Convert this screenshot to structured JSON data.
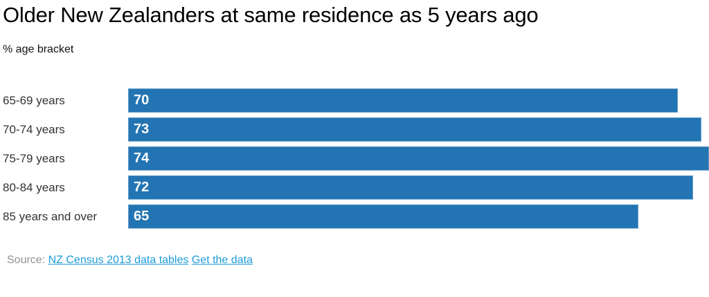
{
  "chart_data": {
    "type": "bar",
    "orientation": "horizontal",
    "title": "Older New Zealanders at same residence as 5 years ago",
    "subtitle": "% age bracket",
    "categories": [
      "65-69 years",
      "70-74 years",
      "75-79 years",
      "80-84 years",
      "85 years and over"
    ],
    "values": [
      70,
      73,
      74,
      72,
      65
    ],
    "xlabel": "",
    "ylabel": "",
    "xlim": [
      0,
      74
    ],
    "grid": false,
    "legend": false,
    "value_label_position": "inside-left",
    "bar_color": "#2374b2",
    "value_label_color": "#ffffff",
    "category_label_color": "#333333"
  },
  "source": {
    "label": "Source:",
    "links": [
      {
        "text": "NZ Census 2013 data tables"
      },
      {
        "text": "Get the data"
      }
    ],
    "link_color": "#1d9cd8"
  }
}
